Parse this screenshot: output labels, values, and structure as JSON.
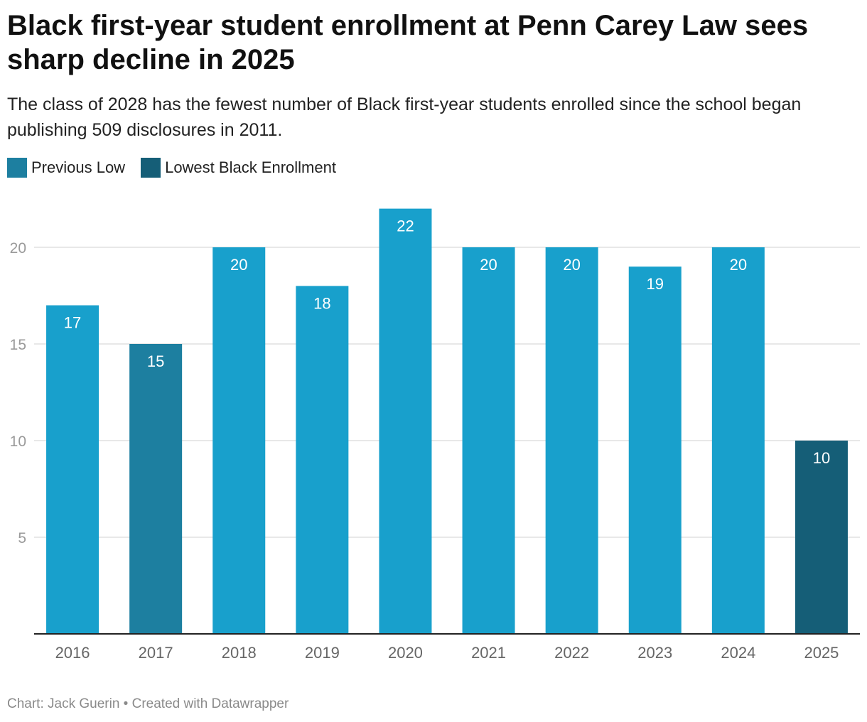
{
  "title": "Black first-year student enrollment at Penn Carey Law sees sharp decline in 2025",
  "subtitle": "The class of 2028 has the fewest number of Black first-year students enrolled since the school began publishing 509 disclosures in 2011.",
  "legend": [
    {
      "label": "Previous Low",
      "color": "#1d7fa0"
    },
    {
      "label": "Lowest Black Enrollment",
      "color": "#155e77"
    }
  ],
  "footer": "Chart: Jack Guerin • Created with Datawrapper",
  "colors": {
    "default_bar": "#18a0cc",
    "previous_low": "#1d7fa0",
    "lowest": "#155e77",
    "grid": "#e0e0e0",
    "axis": "#222222",
    "tick_text": "#666666",
    "y_tick_text": "#9a9a9a"
  },
  "chart_data": {
    "type": "bar",
    "categories": [
      "2016",
      "2017",
      "2018",
      "2019",
      "2020",
      "2021",
      "2022",
      "2023",
      "2024",
      "2025"
    ],
    "values": [
      17,
      15,
      20,
      18,
      22,
      20,
      20,
      19,
      20,
      10
    ],
    "highlight": [
      "default",
      "previous_low",
      "default",
      "default",
      "default",
      "default",
      "default",
      "default",
      "default",
      "lowest"
    ],
    "data_labels": [
      "17",
      "15",
      "20",
      "18",
      "22",
      "20",
      "20",
      "19",
      "20",
      "10"
    ],
    "yticks": [
      5,
      10,
      15,
      20
    ],
    "ylim": [
      0,
      22
    ],
    "grid": true,
    "legend_position": "top-left",
    "xlabel": "",
    "ylabel": ""
  }
}
